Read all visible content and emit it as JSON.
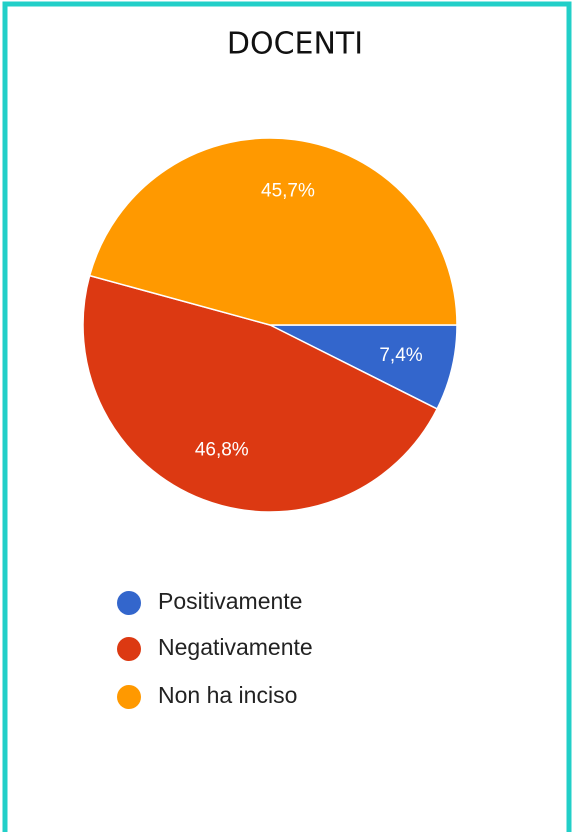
{
  "chart_data": {
    "type": "pie",
    "title": "DOCENTI",
    "categories": [
      "Positivamente",
      "Negativamente",
      "Non ha inciso"
    ],
    "values": [
      7.4,
      46.8,
      45.7
    ],
    "value_labels": [
      "7,4%",
      "46,8%",
      "45,7%"
    ],
    "colors": [
      "#3366cc",
      "#dc3912",
      "#ff9900"
    ]
  }
}
